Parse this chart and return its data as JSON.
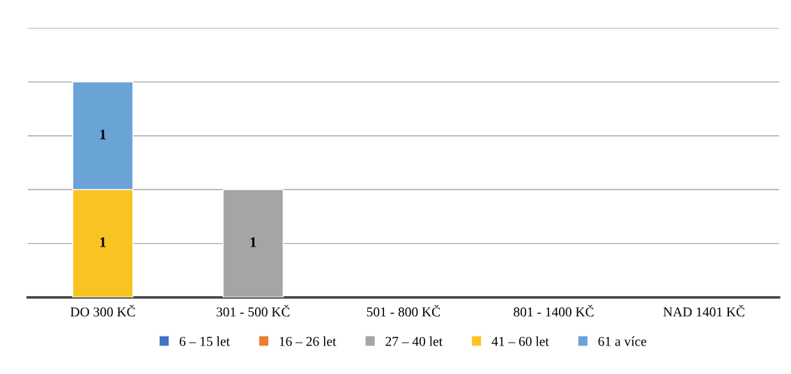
{
  "chart_data": {
    "type": "bar",
    "stacked": true,
    "categories": [
      "DO 300 KČ",
      "301 - 500 KČ",
      "501 - 800 KČ",
      "801 - 1400 KČ",
      "NAD 1401 KČ"
    ],
    "series": [
      {
        "name": "6 – 15 let",
        "color": "#4472c4",
        "values": [
          null,
          null,
          null,
          null,
          null
        ]
      },
      {
        "name": "16 – 26 let",
        "color": "#ed7d31",
        "values": [
          null,
          null,
          null,
          null,
          null
        ]
      },
      {
        "name": "27 – 40 let",
        "color": "#a5a5a5",
        "values": [
          null,
          1,
          null,
          null,
          null
        ]
      },
      {
        "name": "41 – 60 let",
        "color": "#f9c322",
        "values": [
          1,
          null,
          null,
          null,
          null
        ]
      },
      {
        "name": "61 a více",
        "color": "#6aa3d6",
        "values": [
          1,
          null,
          null,
          null,
          null
        ]
      }
    ],
    "ylim": [
      0,
      2.5
    ],
    "yticks": [
      {
        "value": 0,
        "label": null
      },
      {
        "value": 0.5,
        "label": null
      },
      {
        "value": 1,
        "label": null
      },
      {
        "value": 1.5,
        "label": null
      },
      {
        "value": 2,
        "label": null
      },
      {
        "value": 2.5,
        "label": null
      }
    ],
    "tick_labels": "x",
    "grid": "y",
    "legend": "bottom",
    "data_labels": true
  }
}
